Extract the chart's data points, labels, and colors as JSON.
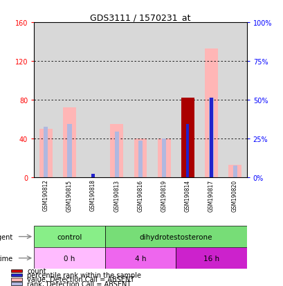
{
  "title": "GDS3111 / 1570231_at",
  "samples": [
    "GSM190812",
    "GSM190815",
    "GSM190818",
    "GSM190813",
    "GSM190816",
    "GSM190819",
    "GSM190814",
    "GSM190817",
    "GSM190820"
  ],
  "value_absent": [
    50,
    72,
    0,
    55,
    40,
    40,
    0,
    133,
    13
  ],
  "rank_absent": [
    52,
    55,
    0,
    47,
    38,
    40,
    0,
    82,
    12
  ],
  "count": [
    0,
    0,
    0,
    0,
    0,
    0,
    82,
    0,
    0
  ],
  "pct_rank": [
    0,
    0,
    3,
    0,
    0,
    0,
    55,
    82,
    0
  ],
  "ylim_left": [
    0,
    160
  ],
  "yticks_left": [
    0,
    40,
    80,
    120,
    160
  ],
  "color_value_absent": "#ffb6b6",
  "color_rank_absent": "#b0b8e0",
  "color_count": "#aa0000",
  "color_pct_rank": "#2222cc",
  "agent_groups": [
    {
      "label": "control",
      "start": 0,
      "end": 3,
      "color": "#88ee88"
    },
    {
      "label": "dihydrotestosterone",
      "start": 3,
      "end": 9,
      "color": "#77dd77"
    }
  ],
  "time_groups": [
    {
      "label": "0 h",
      "start": 0,
      "end": 3,
      "color": "#ffbbff"
    },
    {
      "label": "4 h",
      "start": 3,
      "end": 6,
      "color": "#ee66ee"
    },
    {
      "label": "16 h",
      "start": 6,
      "end": 9,
      "color": "#cc22cc"
    }
  ],
  "legend_items": [
    {
      "label": "count",
      "color": "#cc0000"
    },
    {
      "label": "percentile rank within the sample",
      "color": "#2222cc"
    },
    {
      "label": "value, Detection Call = ABSENT",
      "color": "#ffb6b6"
    },
    {
      "label": "rank, Detection Call = ABSENT",
      "color": "#b0b8e0"
    }
  ],
  "agent_label": "agent",
  "time_label": "time",
  "bg_color": "#d8d8d8"
}
